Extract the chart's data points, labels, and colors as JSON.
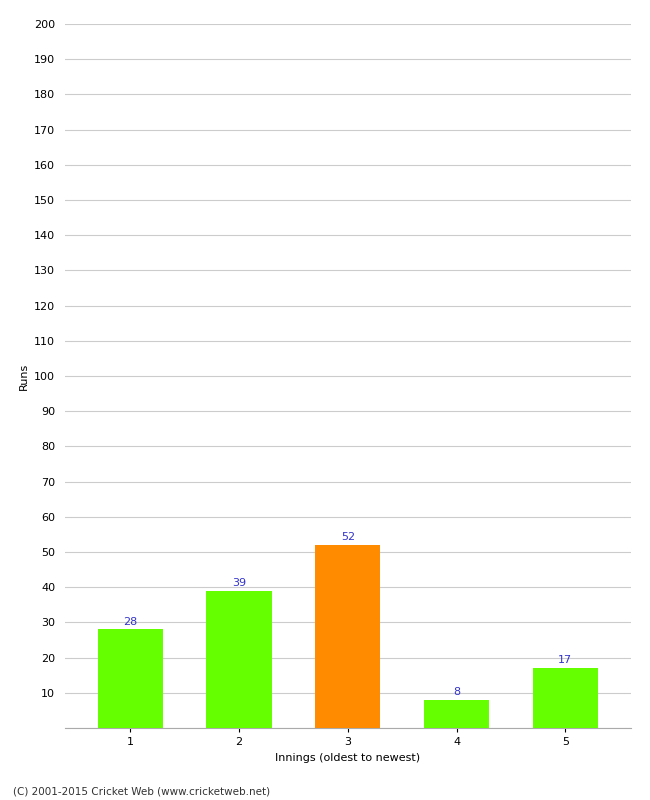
{
  "categories": [
    "1",
    "2",
    "3",
    "4",
    "5"
  ],
  "values": [
    28,
    39,
    52,
    8,
    17
  ],
  "bar_colors": [
    "#66ff00",
    "#66ff00",
    "#ff8c00",
    "#66ff00",
    "#66ff00"
  ],
  "xlabel": "Innings (oldest to newest)",
  "ylabel": "Runs",
  "ylim": [
    0,
    200
  ],
  "yticks": [
    0,
    10,
    20,
    30,
    40,
    50,
    60,
    70,
    80,
    90,
    100,
    110,
    120,
    130,
    140,
    150,
    160,
    170,
    180,
    190,
    200
  ],
  "label_color": "#3333cc",
  "label_fontsize": 8,
  "axis_fontsize": 8,
  "xlabel_fontsize": 8,
  "ylabel_fontsize": 8,
  "footer": "(C) 2001-2015 Cricket Web (www.cricketweb.net)",
  "footer_fontsize": 7.5,
  "background_color": "#ffffff",
  "grid_color": "#cccccc",
  "bar_width": 0.6
}
